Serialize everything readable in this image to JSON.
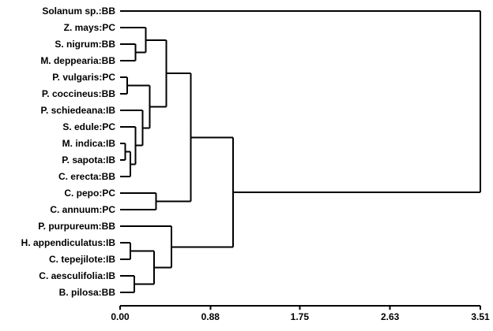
{
  "figure": {
    "kind": "hierarchical-clustering-dendrogram"
  },
  "chart_data": {
    "type": "dendrogram",
    "orientation": "horizontal-right",
    "title": "",
    "xlabel": "",
    "line_color": "#000000",
    "background": "#ffffff",
    "axis_range": [
      0,
      3.51
    ],
    "axis_ticks": [
      "0.00",
      "0.88",
      "1.75",
      "2.63",
      "3.51"
    ],
    "leaves": [
      "Solanum sp.:BB",
      "Z. mays:PC",
      "S. nigrum:BB",
      "M. deppearia:BB",
      "P. vulgaris:PC",
      "P. coccineus:BB",
      "P. schiedeana:IB",
      "S. edule:PC",
      "M. indica:IB",
      "P. sapota:IB",
      "C. erecta:BB",
      "C. pepo:PC",
      "C. annuum:PC",
      "P. purpureum:BB",
      "H. appendiculatus:IB",
      "C. tepejilote:IB",
      "C. aesculifolia:IB",
      "B. pilosa:BB"
    ],
    "tree": {
      "h": 3.51,
      "children": [
        {
          "leaf": "Solanum sp.:BB"
        },
        {
          "h": 1.1,
          "children": [
            {
              "h": 0.69,
              "children": [
                {
                  "h": 0.45,
                  "children": [
                    {
                      "h": 0.25,
                      "children": [
                        {
                          "leaf": "Z. mays:PC"
                        },
                        {
                          "h": 0.15,
                          "children": [
                            {
                              "leaf": "S. nigrum:BB"
                            },
                            {
                              "leaf": "M. deppearia:BB"
                            }
                          ]
                        }
                      ]
                    },
                    {
                      "h": 0.29,
                      "children": [
                        {
                          "h": 0.07,
                          "children": [
                            {
                              "leaf": "P. vulgaris:PC"
                            },
                            {
                              "leaf": "P. coccineus:BB"
                            }
                          ]
                        },
                        {
                          "h": 0.22,
                          "children": [
                            {
                              "leaf": "P. schiedeana:IB"
                            },
                            {
                              "h": 0.15,
                              "children": [
                                {
                                  "leaf": "S. edule:PC"
                                },
                                {
                                  "h": 0.1,
                                  "children": [
                                    {
                                      "h": 0.05,
                                      "children": [
                                        {
                                          "leaf": "M. indica:IB"
                                        },
                                        {
                                          "leaf": "P. sapota:IB"
                                        }
                                      ]
                                    },
                                    {
                                      "leaf": "C. erecta:BB"
                                    }
                                  ]
                                }
                              ]
                            }
                          ]
                        }
                      ]
                    }
                  ]
                },
                {
                  "h": 0.35,
                  "children": [
                    {
                      "leaf": "C. pepo:PC"
                    },
                    {
                      "leaf": "C. annuum:PC"
                    }
                  ]
                }
              ]
            },
            {
              "h": 0.5,
              "children": [
                {
                  "leaf": "P. purpureum:BB"
                },
                {
                  "h": 0.33,
                  "children": [
                    {
                      "h": 0.1,
                      "children": [
                        {
                          "leaf": "H. appendiculatus:IB"
                        },
                        {
                          "leaf": "C. tepejilote:IB"
                        }
                      ]
                    },
                    {
                      "h": 0.14,
                      "children": [
                        {
                          "leaf": "C. aesculifolia:IB"
                        },
                        {
                          "leaf": "B. pilosa:BB"
                        }
                      ]
                    }
                  ]
                }
              ]
            }
          ]
        }
      ]
    }
  }
}
